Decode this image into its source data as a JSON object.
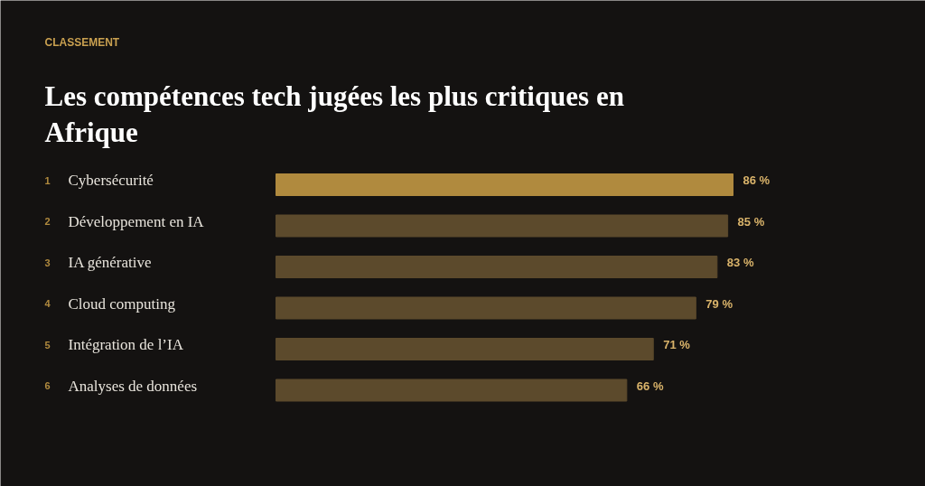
{
  "chart_data": {
    "type": "bar",
    "orientation": "horizontal",
    "subtitle": "CLASSEMENT",
    "title": "Les compétences tech jugées les plus critiques en Afrique",
    "categories": [
      "Cybersécurité",
      "Développement en IA",
      "IA générative",
      "Cloud computing",
      "Intégration de l’IA",
      "Analyses de données"
    ],
    "values": [
      86,
      85,
      83,
      79,
      71,
      66
    ],
    "colors": [
      "#b08a3e",
      "#5c4a2c",
      "#5c4a2c",
      "#5c4a2c",
      "#5c4a2c",
      "#5c4a2c"
    ],
    "value_labels": [
      "86 %",
      "85 %",
      "83 %",
      "79 %",
      "71 %",
      "66 %"
    ],
    "annotations": [
      "1",
      "2",
      "3",
      "4",
      "5",
      "6"
    ],
    "grid": false
  }
}
